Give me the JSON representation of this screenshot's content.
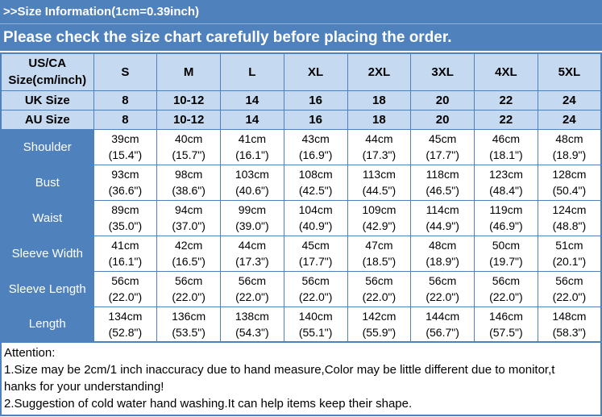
{
  "colors": {
    "banner_blue": "#4f81bd",
    "header_light_blue": "#c5d9f1",
    "border_blue": "#4f81bd",
    "text_on_blue": "#ffffff"
  },
  "banner": {
    "title": ">>Size Information(1cm=0.39inch)",
    "subtitle": "Please check the size chart carefully before placing the order."
  },
  "table": {
    "corner_header": "US/CA\nSize(cm/inch)",
    "size_columns": [
      "S",
      "M",
      "L",
      "XL",
      "2XL",
      "3XL",
      "4XL",
      "5XL"
    ],
    "uk_row": {
      "label": "UK Size",
      "values": [
        "8",
        "10-12",
        "14",
        "16",
        "18",
        "20",
        "22",
        "24"
      ]
    },
    "au_row": {
      "label": "AU Size",
      "values": [
        "8",
        "10-12",
        "14",
        "16",
        "18",
        "20",
        "22",
        "24"
      ]
    },
    "measurement_rows": [
      {
        "label": "Shoulder",
        "values": [
          "39cm\n(15.4\")",
          "40cm\n(15.7\")",
          "41cm\n(16.1\")",
          "43cm\n(16.9\")",
          "44cm\n(17.3\")",
          "45cm\n(17.7\")",
          "46cm\n(18.1\")",
          "48cm\n(18.9\")"
        ]
      },
      {
        "label": "Bust",
        "values": [
          "93cm\n(36.6\")",
          "98cm\n(38.6\")",
          "103cm\n(40.6\")",
          "108cm\n(42.5\")",
          "113cm\n(44.5\")",
          "118cm\n(46.5\")",
          "123cm\n(48.4\")",
          "128cm\n(50.4\")"
        ]
      },
      {
        "label": "Waist",
        "values": [
          "89cm\n(35.0\")",
          "94cm\n(37.0\")",
          "99cm\n(39.0\")",
          "104cm\n(40.9\")",
          "109cm\n(42.9\")",
          "114cm\n(44.9\")",
          "119cm\n(46.9\")",
          "124cm\n(48.8\")"
        ]
      },
      {
        "label": "Sleeve Width",
        "values": [
          "41cm\n(16.1\")",
          "42cm\n(16.5\")",
          "44cm\n(17.3\")",
          "45cm\n(17.7\")",
          "47cm\n(18.5\")",
          "48cm\n(18.9\")",
          "50cm\n(19.7\")",
          "51cm\n(20.1\")"
        ]
      },
      {
        "label": "Sleeve Length",
        "values": [
          "56cm\n(22.0\")",
          "56cm\n(22.0\")",
          "56cm\n(22.0\")",
          "56cm\n(22.0\")",
          "56cm\n(22.0\")",
          "56cm\n(22.0\")",
          "56cm\n(22.0\")",
          "56cm\n(22.0\")"
        ]
      },
      {
        "label": "Length",
        "values": [
          "134cm\n(52.8\")",
          "136cm\n(53.5\")",
          "138cm\n(54.3\")",
          "140cm\n(55.1\")",
          "142cm\n(55.9\")",
          "144cm\n(56.7\")",
          "146cm\n(57.5\")",
          "148cm\n(58.3\")"
        ]
      }
    ]
  },
  "attention": {
    "heading": "Attention:",
    "lines": [
      "1.Size may be 2cm/1 inch inaccuracy due to hand measure,Color may be little different due to monitor,t",
      "hanks for your understanding!",
      "2.Suggestion of cold water hand washing.It can help items keep their shape."
    ]
  }
}
